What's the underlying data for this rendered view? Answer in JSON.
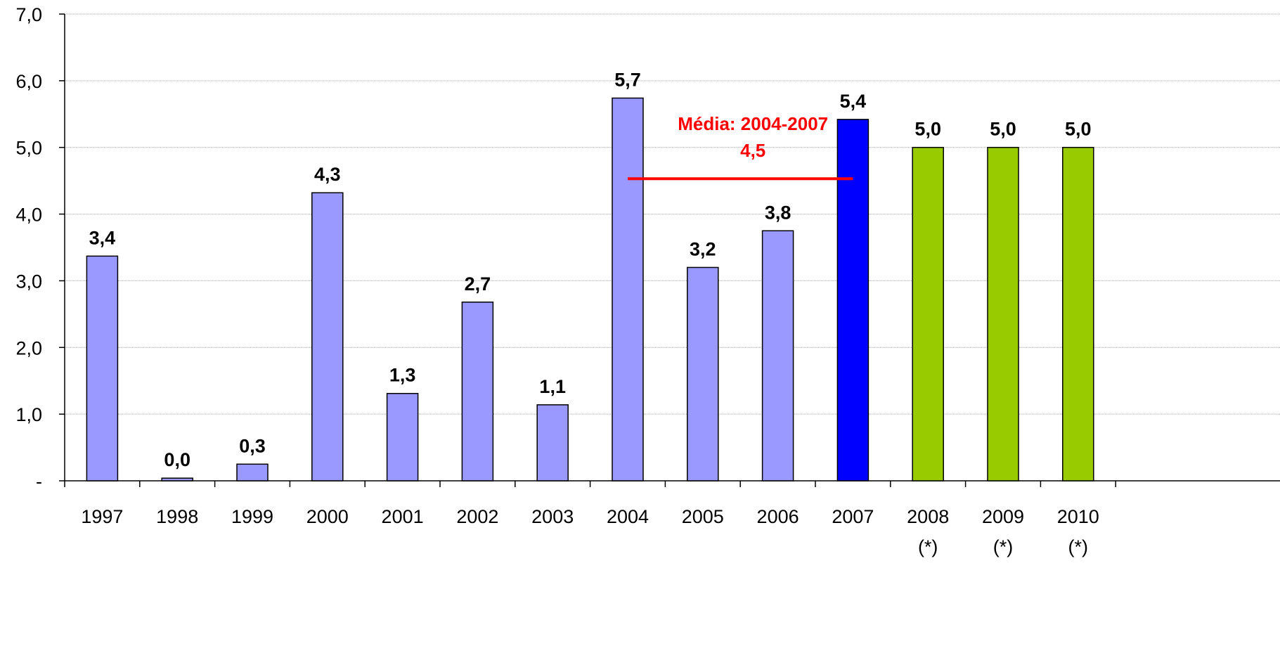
{
  "chart_data": {
    "type": "bar",
    "title": "",
    "xlabel": "",
    "ylabel": "",
    "ylim": [
      0,
      7
    ],
    "y_ticks": [
      "-",
      "1,0",
      "2,0",
      "3,0",
      "4,0",
      "5,0",
      "6,0",
      "7,0"
    ],
    "grid": true,
    "categories": [
      "1997",
      "1998",
      "1999",
      "2000",
      "2001",
      "2002",
      "2003",
      "2004",
      "2005",
      "2006",
      "2007",
      "2008",
      "2009",
      "2010"
    ],
    "category_notes": [
      "",
      "",
      "",
      "",
      "",
      "",
      "",
      "",
      "",
      "",
      "",
      "(*)",
      "(*)",
      "(*)"
    ],
    "values": [
      3.37,
      0.04,
      0.25,
      4.32,
      1.31,
      2.68,
      1.14,
      5.74,
      3.2,
      3.75,
      5.42,
      5.0,
      5.0,
      5.0
    ],
    "data_labels": [
      "3,4",
      "0,0",
      "0,3",
      "4,3",
      "1,3",
      "2,7",
      "1,1",
      "5,7",
      "3,2",
      "3,8",
      "5,4",
      "5,0",
      "5,0",
      "5,0"
    ],
    "bar_colors": [
      "#9999ff",
      "#9999ff",
      "#9999ff",
      "#9999ff",
      "#9999ff",
      "#9999ff",
      "#9999ff",
      "#9999ff",
      "#9999ff",
      "#9999ff",
      "#0000ff",
      "#99cc00",
      "#99cc00",
      "#99cc00"
    ],
    "average_line": {
      "from_category": "2004",
      "to_category": "2007",
      "value": 4.53,
      "label_line1": "Média: 2004-2007",
      "label_line2": "4,5",
      "color": "#ff0000"
    }
  }
}
